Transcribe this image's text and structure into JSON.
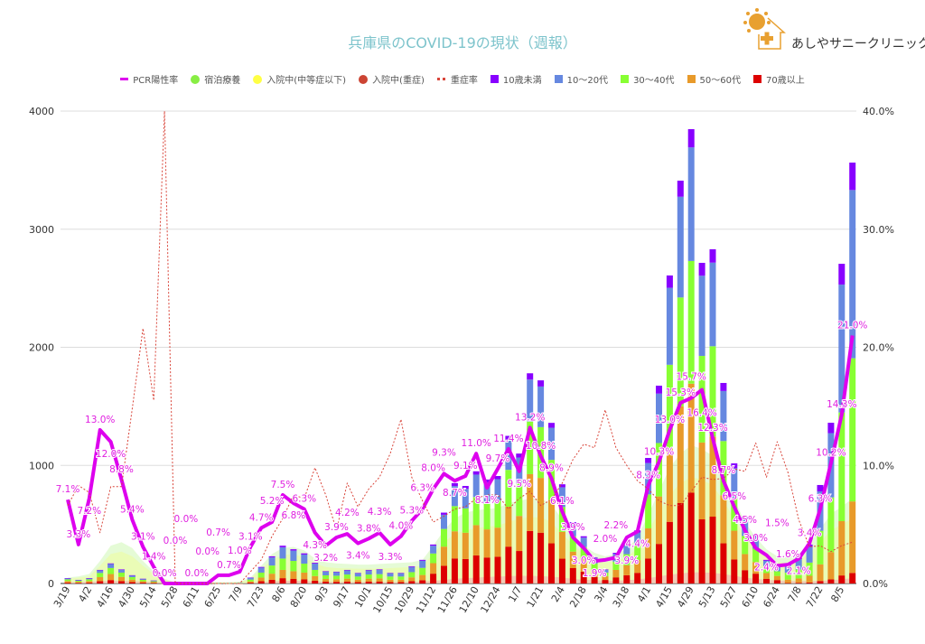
{
  "title": "兵庫県のCOVID-19の現状（週報）",
  "logo": {
    "name": "あしやサニークリニック",
    "badge": "Sunny"
  },
  "legend": [
    {
      "label": "PCR陽性率",
      "color": "#dd00ee",
      "kind": "line"
    },
    {
      "label": "宿泊療養",
      "color": "#88ee44",
      "kind": "dot"
    },
    {
      "label": "入院中(中等症以下)",
      "color": "#ffff44",
      "kind": "dot"
    },
    {
      "label": "入院中(重症)",
      "color": "#cc4433",
      "kind": "dot"
    },
    {
      "label": "重症率",
      "color": "#d9453a",
      "kind": "dash"
    },
    {
      "label": "10歳未満",
      "color": "#8800ff",
      "kind": "box"
    },
    {
      "label": "10〜20代",
      "color": "#6688e0",
      "kind": "box"
    },
    {
      "label": "30〜40代",
      "color": "#88ff33",
      "kind": "box"
    },
    {
      "label": "50〜60代",
      "color": "#e89a2a",
      "kind": "box"
    },
    {
      "label": "70歳以上",
      "color": "#dd0000",
      "kind": "box"
    }
  ],
  "chart_data": {
    "type": "bar",
    "title": "兵庫県のCOVID-19の現状（週報）",
    "y_left": {
      "ylim": [
        0,
        4000
      ],
      "ticks": [
        "0",
        "1000",
        "2000",
        "3000",
        "4000"
      ]
    },
    "y_right": {
      "ylim": [
        0,
        40
      ],
      "ticks": [
        "0.0%",
        "10.0%",
        "20.0%",
        "30.0%",
        "40.0%"
      ]
    },
    "grid": true,
    "legend_position": "top",
    "x_tick_labels": [
      "3/19",
      "4/2",
      "4/16",
      "4/30",
      "5/14",
      "5/28",
      "6/11",
      "6/25",
      "7/9",
      "7/23",
      "8/6",
      "8/20",
      "9/3",
      "9/17",
      "10/1",
      "10/15",
      "10/29",
      "11/12",
      "11/26",
      "12/10",
      "12/24",
      "1/7",
      "1/21",
      "2/4",
      "2/18",
      "3/4",
      "3/18",
      "4/1",
      "4/15",
      "4/29",
      "5/13",
      "5/27",
      "6/10",
      "6/24",
      "7/8",
      "7/22",
      "8/5"
    ],
    "weeks": 74,
    "stack_series": [
      {
        "name": "70歳以上",
        "color": "#dd0000",
        "values": [
          7,
          5,
          7,
          20,
          29,
          20,
          12,
          7,
          4,
          1,
          0,
          0,
          0,
          0,
          0,
          0,
          1,
          7,
          19,
          32,
          45,
          40,
          36,
          24,
          15,
          14,
          16,
          12,
          16,
          17,
          12,
          12,
          20,
          28,
          83,
          150,
          212,
          207,
          238,
          220,
          227,
          312,
          275,
          445,
          430,
          340,
          210,
          130,
          100,
          55,
          30,
          52,
          70,
          90,
          212,
          335,
          522,
          682,
          769,
          543,
          566,
          340,
          203,
          113,
          83,
          40,
          29,
          4,
          6,
          8,
          21,
          35,
          68,
          89
        ]
      },
      {
        "name": "50〜60代",
        "color": "#e89a2a",
        "values": [
          14,
          9,
          14,
          34,
          51,
          36,
          21,
          12,
          8,
          1,
          0,
          0,
          0,
          0,
          0,
          1,
          1,
          11,
          31,
          51,
          70,
          64,
          56,
          39,
          23,
          22,
          25,
          20,
          25,
          26,
          20,
          20,
          32,
          44,
          89,
          162,
          230,
          223,
          256,
          238,
          246,
          338,
          297,
          481,
          464,
          367,
          227,
          140,
          108,
          59,
          32,
          63,
          84,
          108,
          255,
          402,
          626,
          819,
          923,
          651,
          679,
          408,
          244,
          136,
          99,
          48,
          35,
          29,
          37,
          57,
          141,
          231,
          460,
          606
        ]
      },
      {
        "name": "30〜40代",
        "color": "#88ff33",
        "values": [
          14,
          9,
          14,
          35,
          51,
          36,
          21,
          12,
          7,
          2,
          0,
          0,
          0,
          0,
          1,
          1,
          2,
          15,
          42,
          69,
          96,
          87,
          76,
          52,
          31,
          30,
          35,
          27,
          35,
          36,
          27,
          27,
          44,
          60,
          82,
          150,
          213,
          206,
          238,
          220,
          228,
          312,
          275,
          445,
          430,
          340,
          210,
          130,
          100,
          55,
          30,
          70,
          94,
          122,
          287,
          452,
          704,
          921,
          1039,
          733,
          764,
          458,
          275,
          153,
          112,
          54,
          39,
          58,
          75,
          112,
          284,
          463,
          920,
          1212
        ]
      },
      {
        "name": "10〜20代",
        "color": "#6688e0",
        "values": [
          9,
          6,
          9,
          23,
          34,
          24,
          14,
          8,
          5,
          1,
          0,
          0,
          0,
          0,
          1,
          1,
          1,
          15,
          42,
          69,
          96,
          87,
          77,
          53,
          32,
          30,
          34,
          27,
          34,
          36,
          27,
          27,
          43,
          60,
          66,
          120,
          170,
          165,
          190,
          176,
          182,
          250,
          220,
          356,
          344,
          272,
          168,
          104,
          80,
          44,
          24,
          65,
          88,
          112,
          266,
          419,
          652,
          853,
          962,
          679,
          708,
          424,
          254,
          142,
          103,
          50,
          36,
          68,
          88,
          132,
          334,
          544,
          1083,
          1425
        ]
      },
      {
        "name": "10歳未満",
        "color": "#8800ff",
        "values": [
          1,
          1,
          1,
          3,
          5,
          4,
          2,
          1,
          1,
          0,
          0,
          0,
          0,
          0,
          0,
          0,
          0,
          2,
          6,
          9,
          13,
          12,
          10,
          7,
          4,
          4,
          5,
          4,
          5,
          5,
          4,
          4,
          6,
          8,
          10,
          18,
          25,
          25,
          28,
          26,
          27,
          38,
          33,
          53,
          52,
          41,
          25,
          16,
          12,
          7,
          4,
          10,
          14,
          18,
          43,
          67,
          104,
          136,
          154,
          109,
          113,
          68,
          41,
          23,
          17,
          8,
          6,
          11,
          14,
          21,
          54,
          88,
          176,
          232
        ]
      }
    ],
    "area_series": [
      {
        "name": "宿泊療養",
        "color": "#88ee44",
        "values": [
          50,
          60,
          80,
          190,
          320,
          350,
          300,
          190,
          100,
          40,
          10,
          10,
          10,
          10,
          10,
          10,
          15,
          50,
          150,
          250,
          300,
          310,
          280,
          210,
          180,
          170,
          165,
          160,
          160,
          165,
          170,
          175,
          180,
          200,
          320,
          450,
          550,
          600,
          620,
          630,
          640,
          680,
          700,
          720,
          720,
          670,
          540,
          420,
          320,
          260,
          230,
          250,
          290,
          390,
          580,
          780,
          980,
          1100,
          1170,
          1140,
          1080,
          910,
          710,
          520,
          390,
          290,
          230,
          220,
          250,
          340,
          460,
          590,
          650,
          720
        ]
      },
      {
        "name": "入院中(中等症以下)",
        "color": "#ffff44",
        "values": [
          40,
          50,
          60,
          150,
          250,
          270,
          230,
          150,
          80,
          30,
          10,
          10,
          10,
          10,
          10,
          10,
          10,
          40,
          120,
          200,
          240,
          250,
          220,
          170,
          140,
          130,
          128,
          125,
          125,
          128,
          130,
          135,
          140,
          150,
          250,
          350,
          420,
          450,
          470,
          480,
          490,
          520,
          550,
          560,
          560,
          520,
          420,
          330,
          250,
          200,
          180,
          190,
          220,
          300,
          450,
          600,
          750,
          850,
          900,
          880,
          830,
          700,
          550,
          400,
          300,
          220,
          180,
          170,
          190,
          260,
          350,
          450,
          500,
          550
        ]
      },
      {
        "name": "入院中(重症)",
        "color": "#f4b8b8",
        "values": [
          10,
          12,
          14,
          18,
          22,
          22,
          20,
          16,
          12,
          8,
          4,
          3,
          3,
          3,
          3,
          3,
          3,
          6,
          12,
          18,
          22,
          24,
          22,
          18,
          14,
          12,
          12,
          12,
          12,
          12,
          12,
          12,
          14,
          16,
          22,
          30,
          40,
          45,
          50,
          55,
          58,
          62,
          65,
          65,
          62,
          58,
          50,
          40,
          32,
          28,
          24,
          24,
          28,
          34,
          45,
          60,
          75,
          85,
          95,
          95,
          90,
          80,
          65,
          50,
          40,
          32,
          26,
          22,
          20,
          20,
          22,
          28,
          36,
          44
        ]
      }
    ],
    "line_series": [
      {
        "name": "PCR陽性率",
        "color": "#dd00ee",
        "axis": "right",
        "values": [
          7.1,
          3.3,
          7.2,
          13.0,
          12.0,
          8.8,
          5.4,
          3.1,
          1.4,
          0.0,
          0.0,
          0.0,
          0.0,
          0.0,
          0.7,
          0.7,
          1.0,
          3.1,
          4.7,
          5.2,
          7.5,
          6.8,
          6.3,
          4.3,
          3.2,
          3.9,
          4.2,
          3.4,
          3.8,
          4.3,
          3.3,
          4.0,
          5.3,
          6.3,
          8.0,
          9.3,
          8.7,
          9.1,
          11.0,
          8.1,
          9.7,
          11.4,
          9.5,
          13.2,
          10.8,
          8.9,
          6.1,
          3.9,
          3.0,
          1.9,
          2.0,
          2.2,
          3.9,
          4.4,
          8.3,
          10.3,
          13.0,
          15.3,
          15.7,
          16.4,
          12.3,
          8.7,
          6.5,
          4.5,
          3.0,
          2.4,
          1.5,
          1.6,
          2.1,
          3.4,
          6.3,
          10.2,
          14.3,
          21.0
        ],
        "labels": [
          "7.1%",
          "3.3%",
          "7.2%",
          "13.0%",
          "12.0%",
          "8.8%",
          "5.4%",
          "3.1%",
          "1.4%",
          "0.0%",
          "0.0%",
          "0.0%",
          "0.0%",
          "0.0%",
          "0.7%",
          "0.7%",
          "1.0%",
          "3.1%",
          "4.7%",
          "5.2%",
          "7.5%",
          "6.8%",
          "6.3%",
          "4.3%",
          "3.2%",
          "3.9%",
          "4.2%",
          "3.4%",
          "3.8%",
          "4.3%",
          "3.3%",
          "4.0%",
          "5.3%",
          "6.3%",
          "8.0%",
          "9.3%",
          "8.7%",
          "9.1%",
          "11.0%",
          "8.1%",
          "9.7%",
          "11.4%",
          "9.5%",
          "13.2%",
          "10.8%",
          "8.9%",
          "6.1%",
          "3.9%",
          "3.0%",
          "1.9%",
          "2.0%",
          "2.2%",
          "3.9%",
          "4.4%",
          "8.3%",
          "10.3%",
          "13.0%",
          "15.3%",
          "15.7%",
          "16.4%",
          "12.3%",
          "8.7%",
          "6.5%",
          "4.5%",
          "3.0%",
          "2.4%",
          "1.5%",
          "1.6%",
          "2.1%",
          "3.4%",
          "6.3%",
          "10.2%",
          "14.3%",
          "21.0%"
        ]
      },
      {
        "name": "重症率",
        "color": "#d9453a",
        "axis": "right",
        "dashed": true,
        "values": [
          6.6,
          8.3,
          7.7,
          4.3,
          8.2,
          8.2,
          14.8,
          21.6,
          15.5,
          40.0,
          0,
          0,
          0,
          0,
          0,
          0,
          0,
          1.0,
          2.0,
          4.0,
          5.5,
          7.5,
          7.2,
          9.8,
          7.5,
          4.5,
          8.5,
          6.5,
          8.0,
          9.0,
          11.0,
          13.9,
          9.0,
          7.0,
          5.2,
          5.7,
          6.3,
          6.5,
          7.2,
          7.5,
          7.5,
          6.3,
          7.2,
          7.8,
          6.6,
          7.1,
          8.5,
          10.5,
          11.8,
          11.5,
          14.7,
          11.5,
          10.0,
          8.7,
          8.0,
          7.0,
          6.6,
          6.6,
          7.8,
          9.0,
          8.8,
          8.9,
          9.7,
          9.5,
          11.9,
          9.0,
          12.0,
          9.4,
          5.4,
          3.1,
          3.2,
          2.7,
          3.2,
          3.5
        ]
      }
    ]
  }
}
